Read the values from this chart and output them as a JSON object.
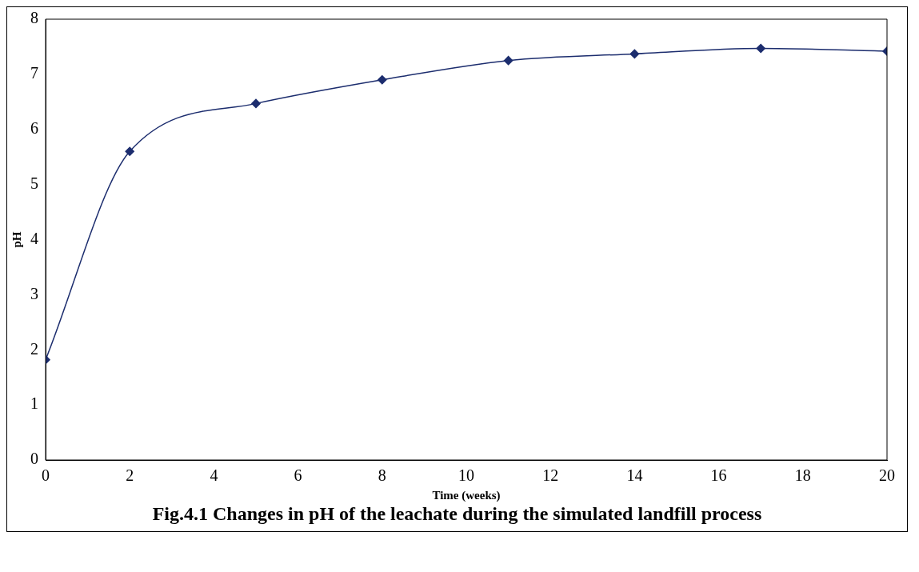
{
  "chart_data": {
    "type": "line",
    "title": "Fig.4.1 Changes in pH of the leachate during the  simulated landfill process",
    "xlabel": "Time (weeks)",
    "ylabel": "pH",
    "x": [
      0,
      2,
      5,
      8,
      11,
      14,
      17,
      20
    ],
    "series": [
      {
        "color": "#1c2d6e",
        "values": [
          1.82,
          5.6,
          6.47,
          6.9,
          7.25,
          7.37,
          7.47,
          7.42
        ]
      }
    ],
    "xlim": [
      0,
      20
    ],
    "xticks": [
      0,
      2,
      4,
      6,
      8,
      10,
      12,
      14,
      16,
      18,
      20
    ],
    "ylim": [
      0,
      8
    ],
    "yticks": [
      0,
      1,
      2,
      3,
      4,
      5,
      6,
      7,
      8
    ],
    "grid": false,
    "legend": false,
    "marker": "diamond",
    "line_style": "solid"
  }
}
